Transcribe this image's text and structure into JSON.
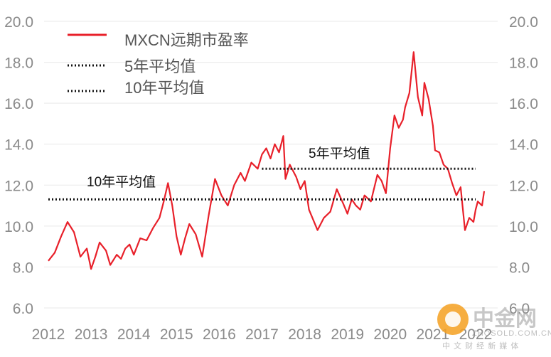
{
  "chart_data": {
    "type": "line",
    "title": "",
    "xlabel": "",
    "ylabel": "",
    "ylim": [
      6.0,
      20.0
    ],
    "xlim": [
      2012.0,
      2022.2
    ],
    "y_ticks": [
      "6.0",
      "8.0",
      "10.0",
      "12.0",
      "14.0",
      "16.0",
      "18.0",
      "20.0"
    ],
    "x_ticks": [
      "2012",
      "2013",
      "2014",
      "2015",
      "2016",
      "2017",
      "2018",
      "2019",
      "2020",
      "2021",
      "2022"
    ],
    "legend": {
      "position": "top-left",
      "items": [
        "MXCN远期市盈率",
        "5年平均值",
        "10年平均值"
      ]
    },
    "series": [
      {
        "name": "MXCN远期市盈率",
        "color": "#e8202a",
        "style": "solid",
        "x": [
          2012.0,
          2012.15,
          2012.3,
          2012.45,
          2012.6,
          2012.75,
          2012.9,
          2013.0,
          2013.1,
          2013.2,
          2013.35,
          2013.45,
          2013.6,
          2013.7,
          2013.8,
          2013.9,
          2014.0,
          2014.15,
          2014.3,
          2014.45,
          2014.6,
          2014.7,
          2014.8,
          2014.9,
          2015.0,
          2015.1,
          2015.2,
          2015.3,
          2015.45,
          2015.6,
          2015.75,
          2015.9,
          2016.05,
          2016.2,
          2016.35,
          2016.5,
          2016.6,
          2016.75,
          2016.9,
          2017.0,
          2017.1,
          2017.2,
          2017.3,
          2017.4,
          2017.5,
          2017.55,
          2017.65,
          2017.8,
          2017.9,
          2018.0,
          2018.1,
          2018.2,
          2018.3,
          2018.45,
          2018.6,
          2018.75,
          2018.9,
          2019.0,
          2019.1,
          2019.2,
          2019.3,
          2019.4,
          2019.55,
          2019.7,
          2019.8,
          2019.9,
          2020.0,
          2020.1,
          2020.2,
          2020.3,
          2020.35,
          2020.45,
          2020.55,
          2020.65,
          2020.75,
          2020.8,
          2020.9,
          2021.0,
          2021.05,
          2021.15,
          2021.25,
          2021.35,
          2021.45,
          2021.55,
          2021.65,
          2021.75,
          2021.85,
          2021.95,
          2022.0,
          2022.05,
          2022.15,
          2022.2
        ],
        "values": [
          8.3,
          8.7,
          9.5,
          10.2,
          9.7,
          8.5,
          8.9,
          7.9,
          8.5,
          9.2,
          8.8,
          8.1,
          8.6,
          8.4,
          8.9,
          9.1,
          8.6,
          9.4,
          9.3,
          9.9,
          10.4,
          11.2,
          12.1,
          11.0,
          9.5,
          8.6,
          9.4,
          10.1,
          9.6,
          8.5,
          10.5,
          12.3,
          11.5,
          11.0,
          12.0,
          12.6,
          12.2,
          13.1,
          12.8,
          13.5,
          13.8,
          13.3,
          14.0,
          13.6,
          14.4,
          12.3,
          13.0,
          12.4,
          11.8,
          12.2,
          10.8,
          10.3,
          9.8,
          10.4,
          10.7,
          11.8,
          11.1,
          10.6,
          11.3,
          11.0,
          10.8,
          11.5,
          11.2,
          12.5,
          12.2,
          11.6,
          13.8,
          15.4,
          14.8,
          15.2,
          15.8,
          16.5,
          18.5,
          16.3,
          15.4,
          17.0,
          16.2,
          14.9,
          13.7,
          13.6,
          13.0,
          12.8,
          12.1,
          11.5,
          11.9,
          9.8,
          10.4,
          10.2,
          10.8,
          11.2,
          11.0,
          11.7
        ]
      },
      {
        "name": "5年平均值",
        "color": "#111111",
        "style": "dotted",
        "x": [
          2017.0,
          2022.0
        ],
        "values": [
          12.8,
          12.8
        ]
      },
      {
        "name": "10年平均值",
        "color": "#111111",
        "style": "dotted",
        "x": [
          2012.0,
          2022.0
        ],
        "values": [
          11.3,
          11.3
        ]
      }
    ],
    "annotations": [
      "5年平均值",
      "10年平均值"
    ]
  },
  "watermark": {
    "name": "中金网",
    "url": "ZHOSOLD.COM.CN",
    "tagline": "中 文 财 经 新 媒 体",
    "logo_color": "#f5a020"
  }
}
